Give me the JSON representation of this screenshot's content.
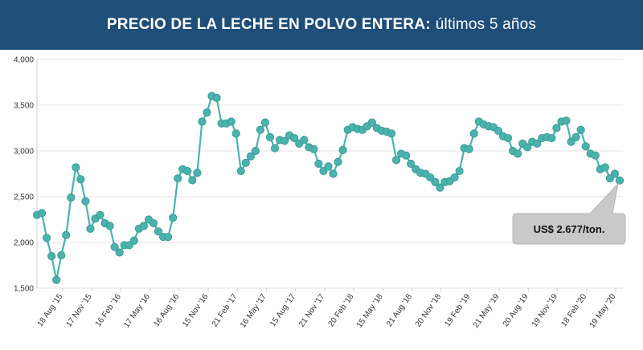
{
  "header": {
    "title_bold": "PRECIO DE LA LECHE EN POLVO ENTERA:",
    "title_rest": "últimos 5 años"
  },
  "colors": {
    "header_bg": "#1f4e79",
    "line": "#4bb3ae",
    "marker_fill": "#4bb3ae",
    "marker_stroke": "#3b9b96",
    "callout_bg": "#c9c9c9"
  },
  "callout": {
    "text": "US$ 2.677/ton."
  },
  "chart_data": {
    "type": "line",
    "title": "",
    "xlabel": "",
    "ylabel": "",
    "ylim": [
      1500,
      4000
    ],
    "y_ticks": [
      "1,500",
      "2,000",
      "2,500",
      "3,000",
      "3,500",
      "4,000"
    ],
    "y_tick_values": [
      1500,
      2000,
      2500,
      3000,
      3500,
      4000
    ],
    "x_tick_labels": [
      "18 Aug '15",
      "17 Nov '15",
      "16 Feb '16",
      "17 May '16",
      "16 Aug '16",
      "15 Nov '16",
      "21 Feb '17",
      "16 May '17",
      "15 Aug '17",
      "21 Nov '17",
      "20 Feb '18",
      "15 May '18",
      "21 Aug '18",
      "20 Nov '18",
      "19 Feb '19",
      "21 May '19",
      "20 Aug '19",
      "19 Nov '19",
      "18 Feb '20",
      "19 May '20"
    ],
    "grid": "horizontal",
    "series": [
      {
        "values": [
          2300,
          2320,
          2050,
          1850,
          1590,
          1860,
          2080,
          2490,
          2820,
          2690,
          2450,
          2150,
          2260,
          2300,
          2210,
          2180,
          1950,
          1890,
          1970,
          1970,
          2020,
          2150,
          2180,
          2250,
          2210,
          2120,
          2060,
          2060,
          2270,
          2700,
          2800,
          2780,
          2680,
          2760,
          3320,
          3420,
          3600,
          3580,
          3300,
          3300,
          3320,
          3190,
          2780,
          2870,
          2940,
          3000,
          3230,
          3310,
          3150,
          3030,
          3120,
          3110,
          3170,
          3140,
          3080,
          3120,
          3040,
          3020,
          2860,
          2780,
          2830,
          2750,
          2880,
          3010,
          3230,
          3260,
          3240,
          3230,
          3270,
          3310,
          3250,
          3220,
          3210,
          3190,
          2900,
          2970,
          2950,
          2860,
          2800,
          2760,
          2750,
          2710,
          2660,
          2600,
          2660,
          2670,
          2710,
          2780,
          3030,
          3020,
          3190,
          3320,
          3290,
          3270,
          3260,
          3220,
          3160,
          3140,
          3000,
          2970,
          3080,
          3040,
          3100,
          3080,
          3140,
          3150,
          3140,
          3250,
          3320,
          3330,
          3100,
          3150,
          3230,
          3050,
          2970,
          2950,
          2800,
          2820,
          2700,
          2750,
          2677
        ]
      }
    ]
  }
}
